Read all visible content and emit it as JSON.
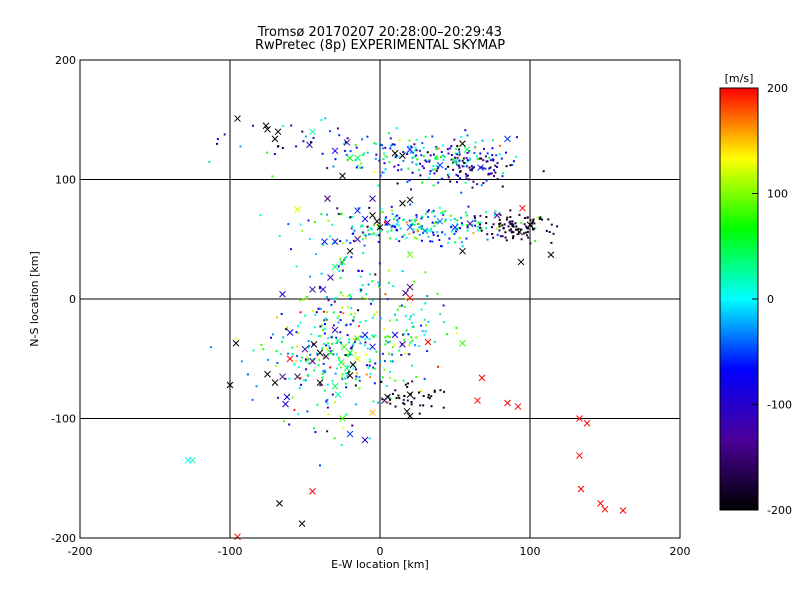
{
  "chart_data": {
    "type": "scatter",
    "title": "Tromsø 20170207 20:28:00–20:29:43",
    "subtitle": "RwPretec (8p) EXPERIMENTAL SKYMAP",
    "xlabel": "E-W location [km]",
    "ylabel": "N-S location [km]",
    "xlim": [
      -200,
      200
    ],
    "ylim": [
      -200,
      200
    ],
    "xticks": [
      -200,
      -100,
      0,
      100,
      200
    ],
    "yticks": [
      -200,
      -100,
      0,
      100,
      200
    ],
    "grid": true,
    "colorbar": {
      "label": "[m/s]",
      "range": [
        -200,
        200
      ],
      "ticks": [
        -200,
        -100,
        0,
        100,
        200
      ],
      "colors": [
        "#000000",
        "#4a0099",
        "#0000ff",
        "#00ffff",
        "#00ff00",
        "#ffff00",
        "#ff0000"
      ]
    },
    "cross_points": [
      {
        "x": -95,
        "y": 151,
        "v": -200
      },
      {
        "x": -76,
        "y": 145,
        "v": -200
      },
      {
        "x": -75,
        "y": 142,
        "v": -200
      },
      {
        "x": -68,
        "y": 140,
        "v": -200
      },
      {
        "x": -70,
        "y": 134,
        "v": -200
      },
      {
        "x": -45,
        "y": 140,
        "v": 20
      },
      {
        "x": -47,
        "y": 129,
        "v": -120
      },
      {
        "x": -30,
        "y": 124,
        "v": -80
      },
      {
        "x": -22,
        "y": 131,
        "v": -120
      },
      {
        "x": -20,
        "y": 118,
        "v": 60
      },
      {
        "x": -15,
        "y": 118,
        "v": 40
      },
      {
        "x": 10,
        "y": 122,
        "v": -200
      },
      {
        "x": 15,
        "y": 120,
        "v": -200
      },
      {
        "x": 20,
        "y": 125,
        "v": -60
      },
      {
        "x": 40,
        "y": 112,
        "v": -50
      },
      {
        "x": 55,
        "y": 130,
        "v": -200
      },
      {
        "x": 58,
        "y": 125,
        "v": 40
      },
      {
        "x": 50,
        "y": 115,
        "v": 30
      },
      {
        "x": 67,
        "y": 110,
        "v": -60
      },
      {
        "x": 85,
        "y": 134,
        "v": -50
      },
      {
        "x": -25,
        "y": 103,
        "v": -200
      },
      {
        "x": -5,
        "y": 84,
        "v": -120
      },
      {
        "x": -55,
        "y": 75,
        "v": 120
      },
      {
        "x": -35,
        "y": 84,
        "v": -150
      },
      {
        "x": 15,
        "y": 80,
        "v": -200
      },
      {
        "x": 20,
        "y": 83,
        "v": -200
      },
      {
        "x": -15,
        "y": 74,
        "v": -60
      },
      {
        "x": -5,
        "y": 70,
        "v": -200
      },
      {
        "x": -2,
        "y": 65,
        "v": -200
      },
      {
        "x": 0,
        "y": 60,
        "v": -200
      },
      {
        "x": 5,
        "y": 64,
        "v": -120
      },
      {
        "x": -10,
        "y": 67,
        "v": -80
      },
      {
        "x": 20,
        "y": 60,
        "v": -50
      },
      {
        "x": 30,
        "y": 57,
        "v": -30
      },
      {
        "x": 40,
        "y": 65,
        "v": -40
      },
      {
        "x": 50,
        "y": 60,
        "v": -60
      },
      {
        "x": 60,
        "y": 63,
        "v": -120
      },
      {
        "x": 78,
        "y": 70,
        "v": -120
      },
      {
        "x": 95,
        "y": 76,
        "v": 200
      },
      {
        "x": 100,
        "y": 62,
        "v": -200
      },
      {
        "x": 93,
        "y": 56,
        "v": -200
      },
      {
        "x": 94,
        "y": 31,
        "v": -200
      },
      {
        "x": 114,
        "y": 37,
        "v": -200
      },
      {
        "x": 55,
        "y": 40,
        "v": -200
      },
      {
        "x": -37,
        "y": 48,
        "v": -60
      },
      {
        "x": -30,
        "y": 48,
        "v": -60
      },
      {
        "x": -15,
        "y": 50,
        "v": -120
      },
      {
        "x": -20,
        "y": 40,
        "v": -200
      },
      {
        "x": -25,
        "y": 31,
        "v": 60
      },
      {
        "x": -30,
        "y": 27,
        "v": 40
      },
      {
        "x": 20,
        "y": 37,
        "v": 100
      },
      {
        "x": -33,
        "y": 18,
        "v": -120
      },
      {
        "x": -38,
        "y": 8,
        "v": -120
      },
      {
        "x": -45,
        "y": 8,
        "v": -120
      },
      {
        "x": -65,
        "y": 4,
        "v": -100
      },
      {
        "x": 20,
        "y": 10,
        "v": -150
      },
      {
        "x": 17,
        "y": 5,
        "v": -140
      },
      {
        "x": 20,
        "y": 1,
        "v": 200
      },
      {
        "x": -60,
        "y": -28,
        "v": -80
      },
      {
        "x": -96,
        "y": -37,
        "v": -200
      },
      {
        "x": -30,
        "y": -26,
        "v": -120
      },
      {
        "x": -28,
        "y": -35,
        "v": 40
      },
      {
        "x": -24,
        "y": -40,
        "v": 80
      },
      {
        "x": -44,
        "y": -38,
        "v": -200
      },
      {
        "x": -40,
        "y": -45,
        "v": -200
      },
      {
        "x": -36,
        "y": -48,
        "v": -140
      },
      {
        "x": -33,
        "y": -45,
        "v": 60
      },
      {
        "x": -20,
        "y": -45,
        "v": 60
      },
      {
        "x": -15,
        "y": -50,
        "v": 120
      },
      {
        "x": -26,
        "y": -53,
        "v": 40
      },
      {
        "x": -22,
        "y": -58,
        "v": 40
      },
      {
        "x": -45,
        "y": -52,
        "v": -140
      },
      {
        "x": -50,
        "y": -42,
        "v": -140
      },
      {
        "x": -60,
        "y": -50,
        "v": 200
      },
      {
        "x": -55,
        "y": -65,
        "v": -170
      },
      {
        "x": -65,
        "y": -65,
        "v": -140
      },
      {
        "x": -75,
        "y": -63,
        "v": -200
      },
      {
        "x": -70,
        "y": -70,
        "v": -200
      },
      {
        "x": -40,
        "y": -70,
        "v": -200
      },
      {
        "x": -30,
        "y": -73,
        "v": 40
      },
      {
        "x": -28,
        "y": -80,
        "v": 20
      },
      {
        "x": -20,
        "y": -64,
        "v": -200
      },
      {
        "x": -18,
        "y": -55,
        "v": -200
      },
      {
        "x": 10,
        "y": -30,
        "v": -80
      },
      {
        "x": 15,
        "y": -38,
        "v": -120
      },
      {
        "x": 32,
        "y": -36,
        "v": 200
      },
      {
        "x": -10,
        "y": -30,
        "v": -60
      },
      {
        "x": -5,
        "y": -40,
        "v": -60
      },
      {
        "x": -15,
        "y": -33,
        "v": 80
      },
      {
        "x": 55,
        "y": -37,
        "v": 80
      },
      {
        "x": -100,
        "y": -72,
        "v": -200
      },
      {
        "x": -62,
        "y": -82,
        "v": -80
      },
      {
        "x": -63,
        "y": -88,
        "v": -100
      },
      {
        "x": -25,
        "y": -100,
        "v": 80
      },
      {
        "x": -5,
        "y": -95,
        "v": 150
      },
      {
        "x": 18,
        "y": -94,
        "v": -200
      },
      {
        "x": 20,
        "y": -98,
        "v": -200
      },
      {
        "x": 20,
        "y": -80,
        "v": -200
      },
      {
        "x": 5,
        "y": -82,
        "v": -200
      },
      {
        "x": 3,
        "y": -85,
        "v": -150
      },
      {
        "x": 68,
        "y": -66,
        "v": 200
      },
      {
        "x": 65,
        "y": -85,
        "v": 200
      },
      {
        "x": 85,
        "y": -87,
        "v": 200
      },
      {
        "x": 92,
        "y": -90,
        "v": 200
      },
      {
        "x": -20,
        "y": -113,
        "v": -50
      },
      {
        "x": -10,
        "y": -118,
        "v": -120
      },
      {
        "x": -125,
        "y": -135,
        "v": 20
      },
      {
        "x": -128,
        "y": -135,
        "v": 0
      },
      {
        "x": 133,
        "y": -100,
        "v": 200
      },
      {
        "x": 138,
        "y": -104,
        "v": 200
      },
      {
        "x": 133,
        "y": -131,
        "v": 200
      },
      {
        "x": 134,
        "y": -159,
        "v": 200
      },
      {
        "x": 147,
        "y": -171,
        "v": 200
      },
      {
        "x": 150,
        "y": -176,
        "v": 200
      },
      {
        "x": 162,
        "y": -177,
        "v": 200
      },
      {
        "x": -45,
        "y": -161,
        "v": 200
      },
      {
        "x": -67,
        "y": -171,
        "v": -200
      },
      {
        "x": -52,
        "y": -188,
        "v": -200
      },
      {
        "x": -95,
        "y": -199,
        "v": 200
      }
    ]
  }
}
